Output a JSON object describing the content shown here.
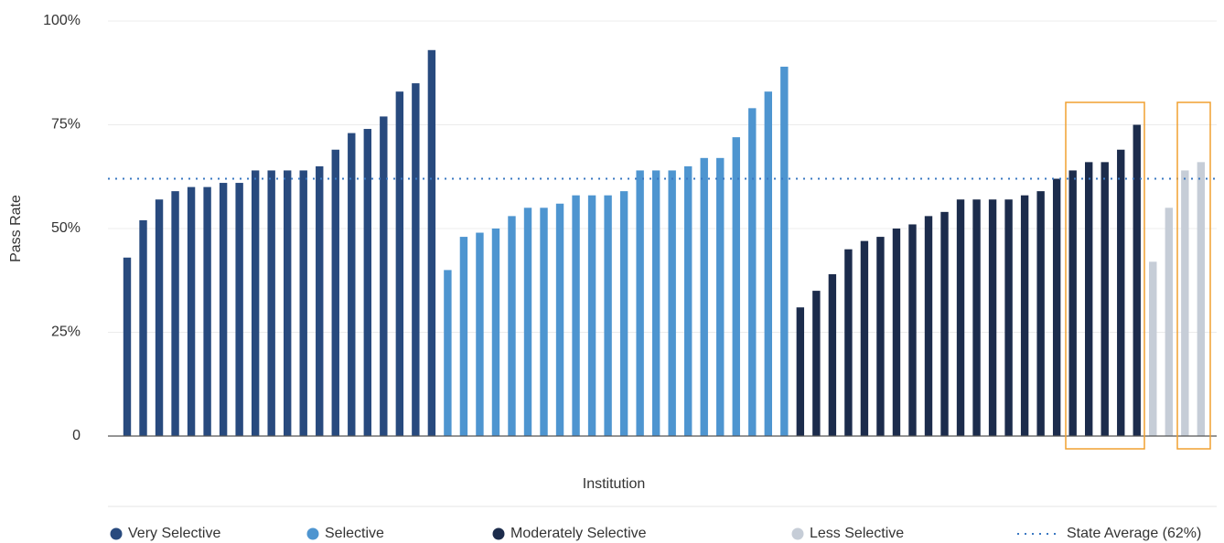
{
  "chart_data": {
    "type": "bar",
    "x_label": "Institution",
    "y_label": "Pass Rate",
    "ylim": [
      0,
      100
    ],
    "yticks": [
      0,
      {
        "value": 25,
        "label": "25%"
      },
      {
        "value": 50,
        "label": "50%"
      },
      {
        "value": 75,
        "label": "75%"
      },
      {
        "value": 100,
        "label": "100%"
      }
    ],
    "grid": true,
    "legend": "bottom",
    "series": [
      {
        "name": "Very Selective",
        "color": "#284a7e",
        "values": [
          43,
          52,
          57,
          59,
          60,
          60,
          61,
          61,
          64,
          64,
          64,
          64,
          65,
          69,
          73,
          74,
          77,
          83,
          85,
          93
        ]
      },
      {
        "name": "Selective",
        "color": "#4e95d0",
        "values": [
          40,
          48,
          49,
          50,
          53,
          55,
          55,
          56,
          58,
          58,
          58,
          59,
          64,
          64,
          64,
          65,
          67,
          67,
          72,
          79,
          83,
          89
        ]
      },
      {
        "name": "Moderately Selective",
        "color": "#1c2c4c",
        "values": [
          31,
          35,
          39,
          45,
          47,
          48,
          50,
          51,
          53,
          54,
          57,
          57,
          57,
          57,
          58,
          59,
          62,
          64,
          66,
          66,
          69,
          75
        ]
      },
      {
        "name": "Less Selective",
        "color": "#c6cdd7",
        "values": [
          42,
          55,
          64,
          66
        ]
      }
    ],
    "reference_lines": [
      {
        "name": "State Average (62%)",
        "value": 62,
        "color": "#3a78c2",
        "style": "dotted"
      }
    ]
  }
}
